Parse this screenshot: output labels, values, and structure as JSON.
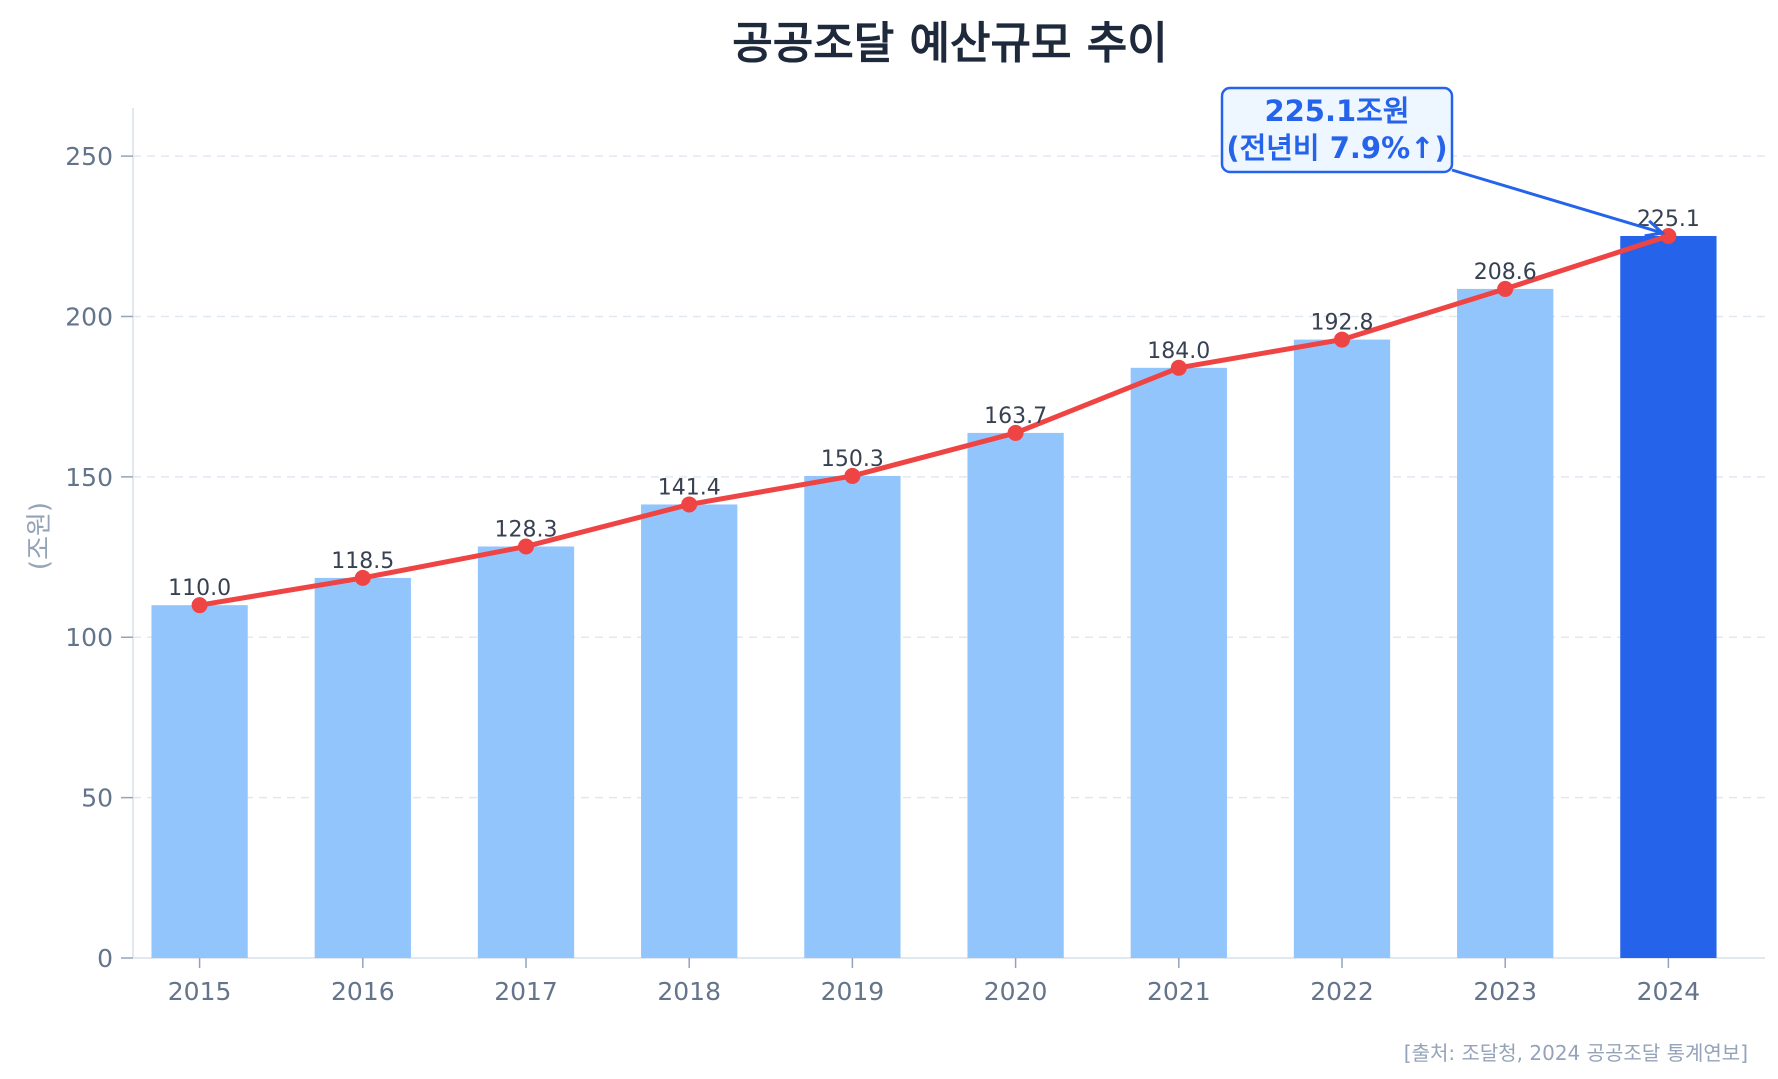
{
  "chart_data": {
    "type": "bar",
    "title": "공공조달 예산규모 추이",
    "ylabel": "(조원)",
    "xlabel": "",
    "categories": [
      "2015",
      "2016",
      "2017",
      "2018",
      "2019",
      "2020",
      "2021",
      "2022",
      "2023",
      "2024"
    ],
    "values": [
      110.0,
      118.5,
      128.3,
      141.4,
      150.3,
      163.7,
      184.0,
      192.8,
      208.6,
      225.1
    ],
    "value_labels": [
      "110.0",
      "118.5",
      "128.3",
      "141.4",
      "150.3",
      "163.7",
      "184.0",
      "192.8",
      "208.6",
      "225.1"
    ],
    "overlay_line": {
      "type": "line",
      "values": [
        110.0,
        118.5,
        128.3,
        141.4,
        150.3,
        163.7,
        184.0,
        192.8,
        208.6,
        225.1
      ],
      "color": "#ef4444"
    },
    "ylim": [
      0,
      265
    ],
    "yticks": [
      "0",
      "50",
      "100",
      "150",
      "200",
      "250"
    ],
    "grid": "horizontal dashed",
    "highlight": {
      "category": "2024",
      "color": "#2563eb"
    },
    "bar_color": "#93c5fd",
    "annotation": {
      "target": "2024",
      "line1": "225.1조원",
      "line2": "(전년비 7.9%↑)",
      "color": "#2563eb"
    },
    "source": "[출처: 조달청, 2024 공공조달 통계연보]"
  }
}
